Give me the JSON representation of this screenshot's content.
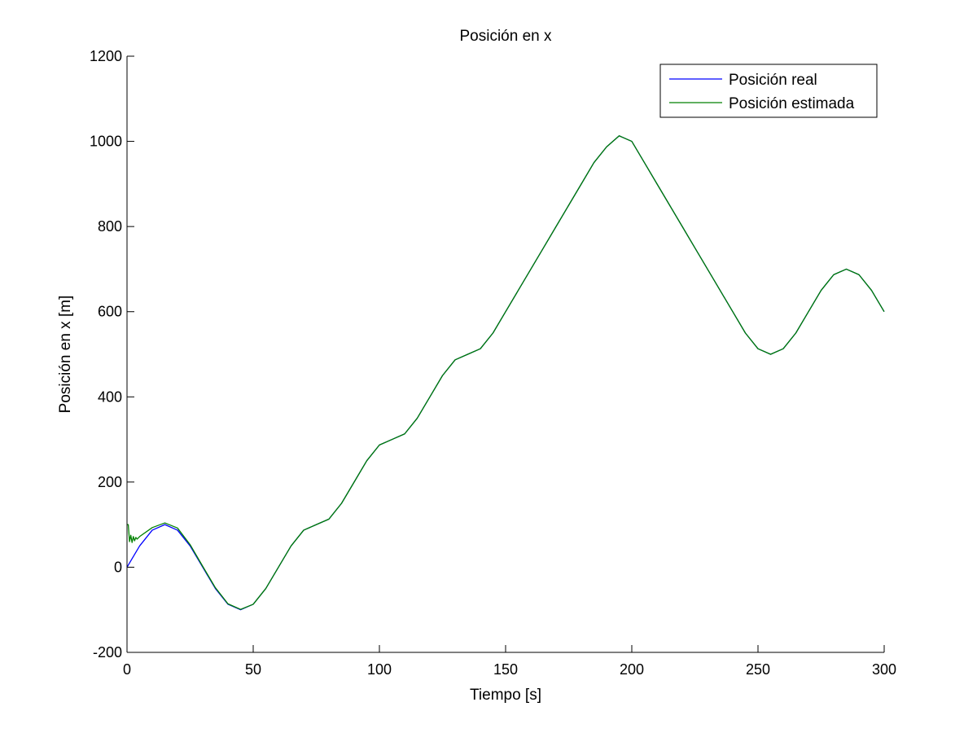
{
  "chart_data": {
    "type": "line",
    "title": "Posición en x",
    "xlabel": "Tiempo [s]",
    "ylabel": "Posición en x [m]",
    "xlim": [
      0,
      300
    ],
    "ylim": [
      -200,
      1200
    ],
    "xticks": [
      0,
      50,
      100,
      150,
      200,
      250,
      300
    ],
    "yticks": [
      -200,
      0,
      200,
      400,
      600,
      800,
      1000,
      1200
    ],
    "xtick_labels": [
      "0",
      "50",
      "100",
      "150",
      "200",
      "250",
      "300"
    ],
    "ytick_labels": [
      "-200",
      "0",
      "200",
      "400",
      "600",
      "800",
      "1000",
      "1200"
    ],
    "grid": false,
    "legend_position": "top-right",
    "series": [
      {
        "name": "Posición real",
        "color": "#0000ff",
        "x": [
          0,
          5,
          10,
          15,
          20,
          25,
          30,
          35,
          40,
          45,
          50,
          55,
          60,
          65,
          70,
          75,
          80,
          85,
          90,
          95,
          100,
          105,
          110,
          115,
          120,
          125,
          130,
          135,
          140,
          145,
          150,
          155,
          160,
          165,
          170,
          175,
          180,
          185,
          190,
          195,
          200,
          205,
          210,
          215,
          220,
          225,
          230,
          235,
          240,
          245,
          250,
          255,
          260,
          265,
          270,
          275,
          280,
          285,
          290,
          295,
          300
        ],
        "values": [
          0,
          50,
          87,
          100,
          87,
          50,
          0,
          -50,
          -87,
          -100,
          -87,
          -50,
          0,
          50,
          87,
          100,
          113,
          150,
          200,
          250,
          287,
          300,
          313,
          350,
          400,
          450,
          487,
          500,
          513,
          550,
          600,
          650,
          700,
          750,
          800,
          850,
          900,
          950,
          987,
          1013,
          1000,
          950,
          900,
          850,
          800,
          750,
          700,
          650,
          600,
          550,
          513,
          500,
          513,
          550,
          600,
          650,
          687,
          700,
          687,
          650,
          600
        ]
      },
      {
        "name": "Posición estimada",
        "color": "#008000",
        "x": [
          0,
          0.5,
          1,
          1.5,
          2,
          2.5,
          3,
          3.5,
          4,
          5,
          10,
          15,
          20,
          25,
          30,
          35,
          40,
          45,
          50,
          55,
          60,
          65,
          70,
          75,
          80,
          85,
          90,
          95,
          100,
          105,
          110,
          115,
          120,
          125,
          130,
          135,
          140,
          145,
          150,
          155,
          160,
          165,
          170,
          175,
          180,
          185,
          190,
          195,
          200,
          205,
          210,
          215,
          220,
          225,
          230,
          235,
          240,
          245,
          250,
          255,
          260,
          265,
          270,
          275,
          280,
          285,
          290,
          295,
          300
        ],
        "values": [
          100,
          100,
          60,
          75,
          58,
          72,
          62,
          70,
          66,
          72,
          93,
          104,
          92,
          53,
          2,
          -48,
          -86,
          -99,
          -87,
          -50,
          0,
          50,
          87,
          100,
          113,
          150,
          200,
          250,
          287,
          300,
          313,
          350,
          400,
          450,
          487,
          500,
          513,
          550,
          600,
          650,
          700,
          750,
          800,
          850,
          900,
          950,
          987,
          1013,
          1000,
          950,
          900,
          850,
          800,
          750,
          700,
          650,
          600,
          550,
          513,
          500,
          513,
          550,
          600,
          650,
          687,
          700,
          687,
          650,
          600
        ]
      }
    ]
  }
}
